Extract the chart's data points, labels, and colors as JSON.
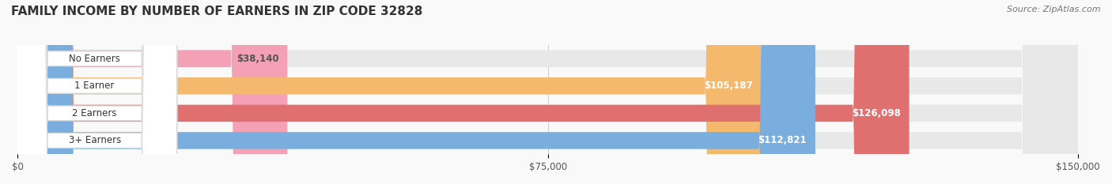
{
  "title": "FAMILY INCOME BY NUMBER OF EARNERS IN ZIP CODE 32828",
  "source": "Source: ZipAtlas.com",
  "categories": [
    "No Earners",
    "1 Earner",
    "2 Earners",
    "3+ Earners"
  ],
  "values": [
    38140,
    105187,
    126098,
    112821
  ],
  "labels": [
    "$38,140",
    "$105,187",
    "$126,098",
    "$112,821"
  ],
  "bar_colors": [
    "#f4a0b5",
    "#f5b96e",
    "#e07070",
    "#7aaede"
  ],
  "label_colors": [
    "#555555",
    "#ffffff",
    "#ffffff",
    "#ffffff"
  ],
  "bar_bg_color": "#eeeeee",
  "xlim": [
    0,
    150000
  ],
  "xticks": [
    0,
    75000,
    150000
  ],
  "xtick_labels": [
    "$0",
    "$75,000",
    "$150,000"
  ],
  "title_fontsize": 11,
  "source_fontsize": 8,
  "background_color": "#f9f9f9",
  "bar_height": 0.62,
  "bar_gap": 0.1
}
